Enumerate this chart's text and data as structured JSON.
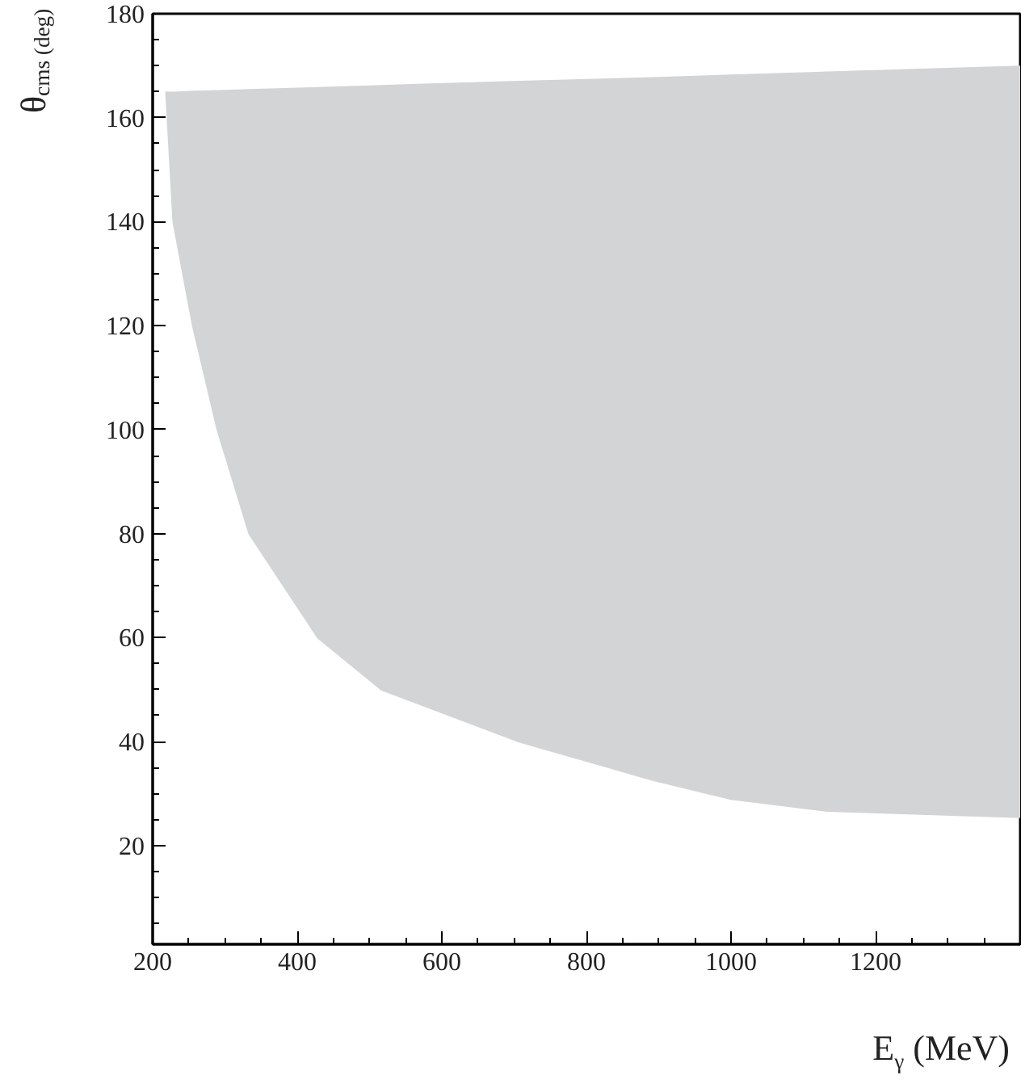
{
  "chart_data": {
    "type": "line",
    "xlabel": "E$_{γ}$ (MeV)",
    "ylabel": "θ$_{cms (deg)}$",
    "xlim": [
      200,
      1400
    ],
    "ylim": [
      1,
      180
    ],
    "xticks": [
      200,
      400,
      600,
      800,
      1000,
      1200
    ],
    "yticks": [
      20,
      40,
      60,
      80,
      100,
      120,
      140,
      160,
      180
    ],
    "grid": false,
    "series": [
      {
        "color": "#d3d4d6",
        "x": [
          219,
          229,
          256,
          290,
          334,
          429,
          517,
          708,
          891,
          1000,
          1133,
          1400
        ],
        "values": [
          165,
          140,
          120,
          100,
          80,
          60,
          50,
          40,
          32.7,
          29,
          26.7,
          25.5
        ],
        "lower": [
          165,
          140,
          120,
          100,
          80,
          60,
          50,
          40,
          32.7,
          29,
          26.7,
          25.5
        ],
        "upper": [
          165,
          165,
          165.2,
          165.3,
          165.5,
          165.9,
          166.3,
          167.1,
          167.8,
          168.3,
          168.9,
          170
        ]
      }
    ]
  }
}
